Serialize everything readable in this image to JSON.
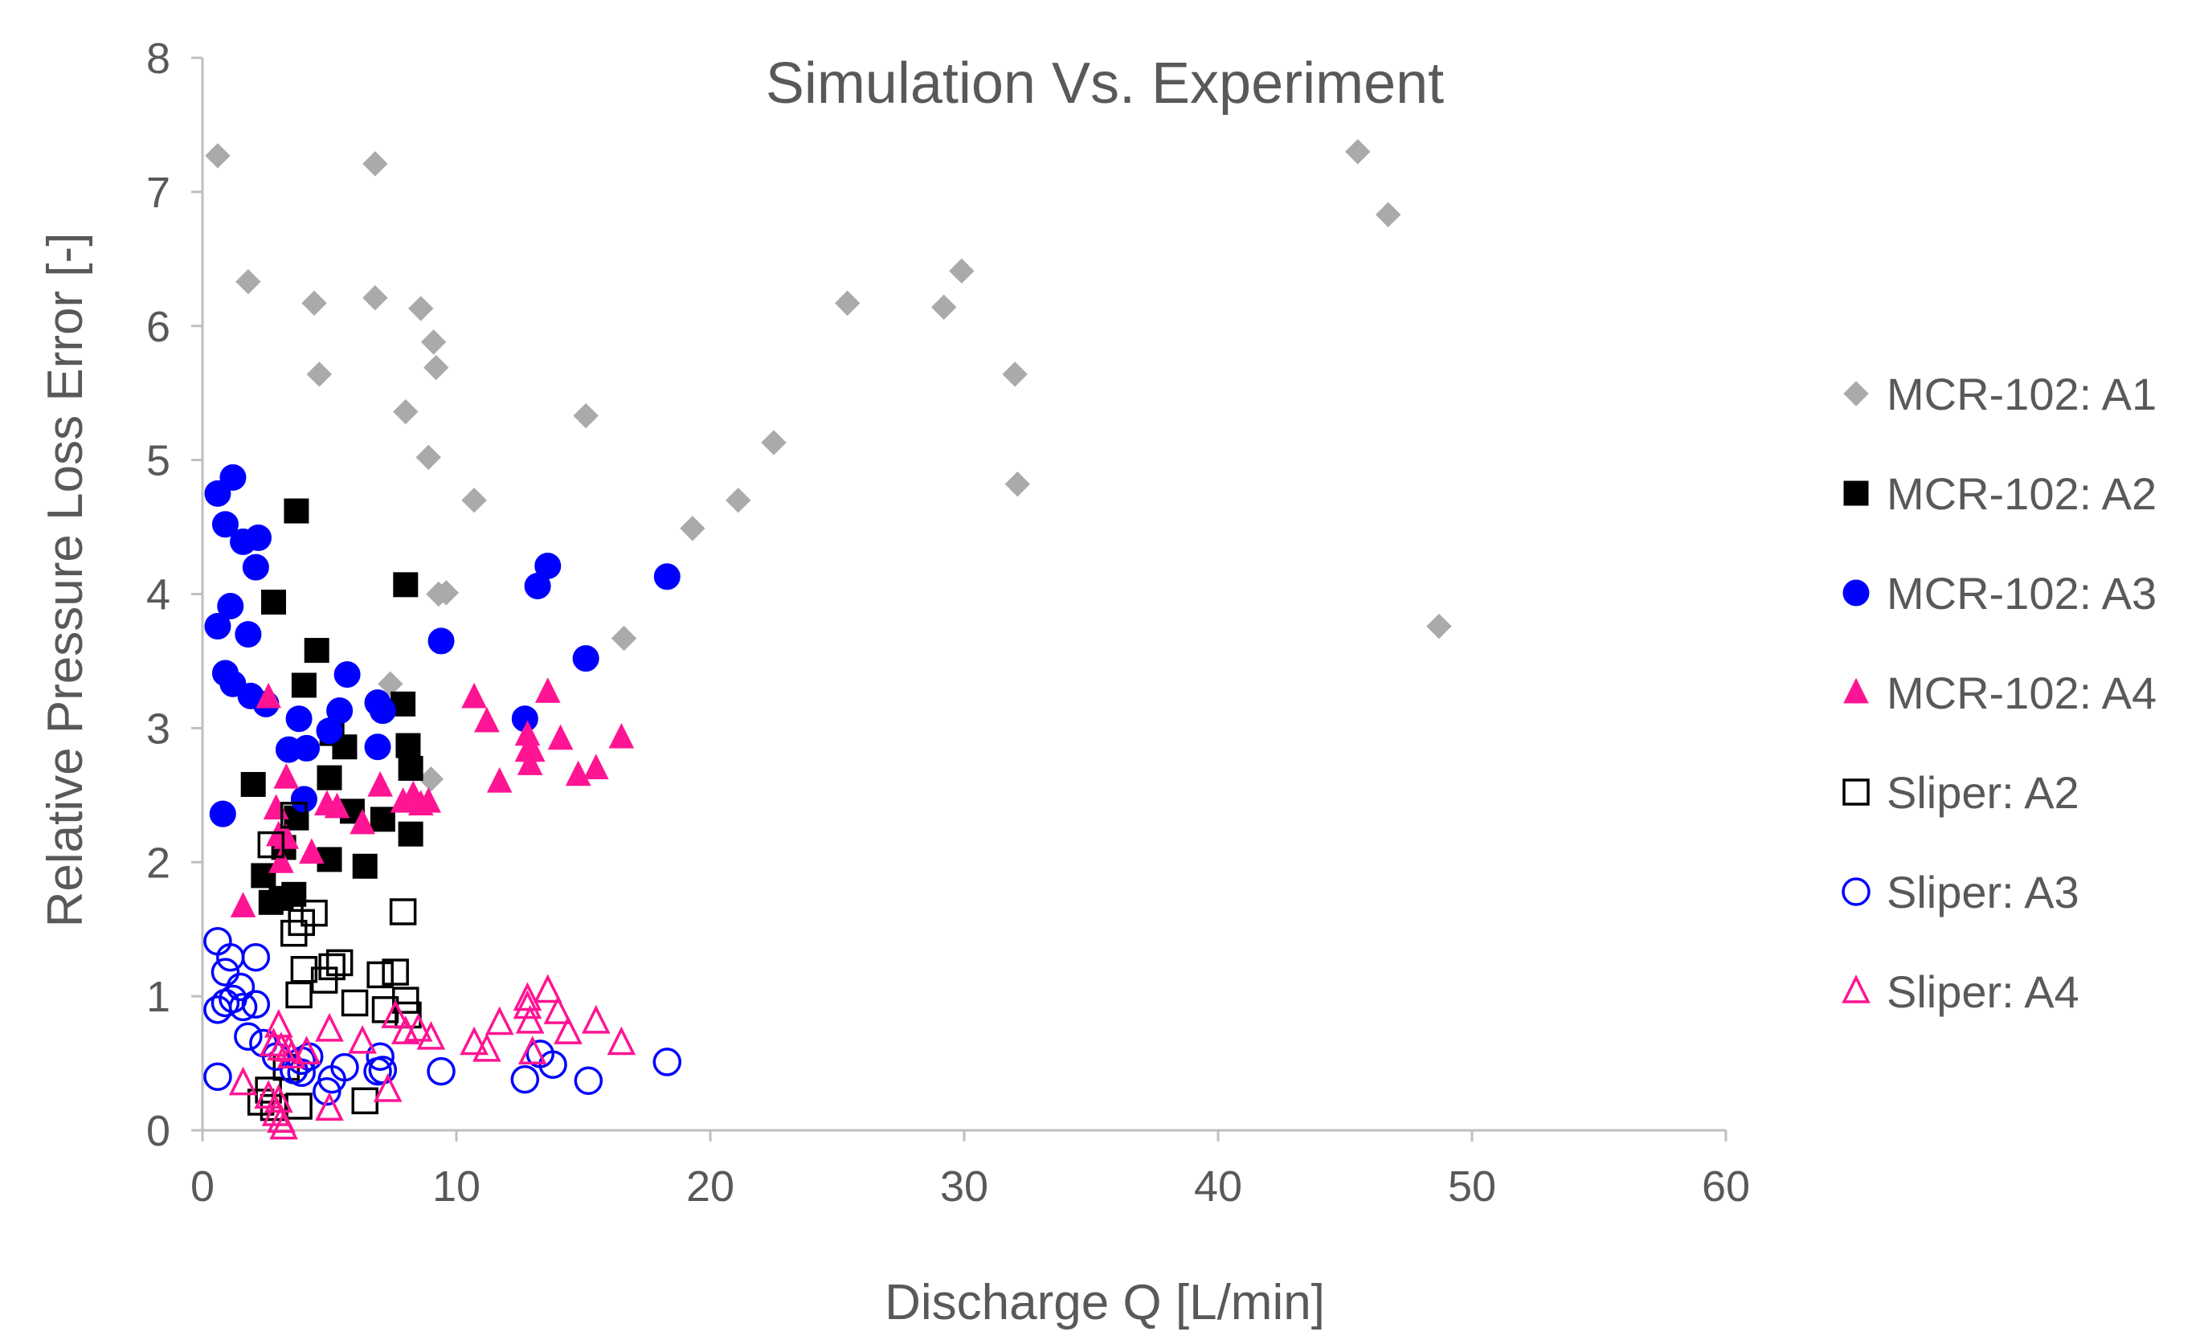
{
  "chart_data": {
    "type": "scatter",
    "title": "Simulation Vs. Experiment",
    "xlabel": "Discharge Q [L/min]",
    "ylabel": "Relative Pressure Loss Error [-]",
    "xlim": [
      0,
      60
    ],
    "ylim": [
      0,
      8
    ],
    "xticks": [
      "0",
      "10",
      "20",
      "30",
      "40",
      "50",
      "60"
    ],
    "yticks": [
      "0",
      "1",
      "2",
      "3",
      "4",
      "5",
      "6",
      "7",
      "8"
    ],
    "grid": false,
    "legend_position": "right",
    "series": [
      {
        "name": "MCR-102: A1",
        "marker": "diamond",
        "filled": true,
        "color": "#aaaaaa",
        "points": [
          [
            0.6,
            7.27
          ],
          [
            1.8,
            6.33
          ],
          [
            4.4,
            6.17
          ],
          [
            4.6,
            5.64
          ],
          [
            6.8,
            7.21
          ],
          [
            6.8,
            6.21
          ],
          [
            8.0,
            5.36
          ],
          [
            8.6,
            6.13
          ],
          [
            8.9,
            5.02
          ],
          [
            9.1,
            5.88
          ],
          [
            9.2,
            5.69
          ],
          [
            9.3,
            4.0
          ],
          [
            9.6,
            4.01
          ],
          [
            10.7,
            4.7
          ],
          [
            7.4,
            3.33
          ],
          [
            9.0,
            2.62
          ],
          [
            15.1,
            5.33
          ],
          [
            16.6,
            3.67
          ],
          [
            19.3,
            4.49
          ],
          [
            21.1,
            4.7
          ],
          [
            22.5,
            5.13
          ],
          [
            25.4,
            6.17
          ],
          [
            29.2,
            6.14
          ],
          [
            29.9,
            6.41
          ],
          [
            32.0,
            5.64
          ],
          [
            32.1,
            4.82
          ],
          [
            45.5,
            7.3
          ],
          [
            46.7,
            6.83
          ],
          [
            48.7,
            3.76
          ]
        ]
      },
      {
        "name": "MCR-102: A2",
        "marker": "square",
        "filled": true,
        "color": "#000000",
        "points": [
          [
            3.7,
            4.62
          ],
          [
            2.8,
            3.94
          ],
          [
            8.0,
            4.07
          ],
          [
            4.5,
            3.58
          ],
          [
            4.0,
            3.32
          ],
          [
            7.9,
            3.18
          ],
          [
            5.1,
            2.96
          ],
          [
            8.1,
            2.87
          ],
          [
            5.6,
            2.86
          ],
          [
            8.2,
            2.7
          ],
          [
            2.0,
            2.58
          ],
          [
            5.0,
            2.63
          ],
          [
            5.9,
            2.38
          ],
          [
            7.1,
            2.32
          ],
          [
            3.7,
            2.33
          ],
          [
            8.2,
            2.21
          ],
          [
            3.2,
            2.11
          ],
          [
            5.0,
            2.02
          ],
          [
            6.4,
            1.97
          ],
          [
            2.4,
            1.9
          ],
          [
            3.1,
            1.73
          ],
          [
            3.6,
            1.76
          ],
          [
            2.7,
            1.7
          ]
        ]
      },
      {
        "name": "MCR-102: A3",
        "marker": "circle",
        "filled": true,
        "color": "#0000ff",
        "points": [
          [
            1.2,
            4.87
          ],
          [
            0.6,
            4.75
          ],
          [
            0.9,
            4.52
          ],
          [
            1.6,
            4.39
          ],
          [
            2.2,
            4.42
          ],
          [
            2.1,
            4.2
          ],
          [
            1.1,
            3.91
          ],
          [
            0.6,
            3.76
          ],
          [
            1.8,
            3.7
          ],
          [
            0.9,
            3.41
          ],
          [
            1.2,
            3.33
          ],
          [
            1.9,
            3.24
          ],
          [
            2.5,
            3.18
          ],
          [
            13.6,
            4.21
          ],
          [
            13.2,
            4.06
          ],
          [
            18.3,
            4.13
          ],
          [
            9.4,
            3.65
          ],
          [
            15.1,
            3.52
          ],
          [
            5.7,
            3.4
          ],
          [
            12.7,
            3.07
          ],
          [
            6.9,
            3.19
          ],
          [
            7.1,
            3.13
          ],
          [
            5.4,
            3.13
          ],
          [
            3.8,
            3.07
          ],
          [
            5.0,
            2.98
          ],
          [
            3.4,
            2.84
          ],
          [
            4.1,
            2.85
          ],
          [
            6.9,
            2.86
          ],
          [
            4.0,
            2.47
          ],
          [
            0.8,
            2.36
          ]
        ]
      },
      {
        "name": "MCR-102: A4",
        "marker": "triangle",
        "filled": true,
        "color": "#ff1493",
        "points": [
          [
            2.6,
            3.23
          ],
          [
            3.3,
            2.63
          ],
          [
            2.9,
            2.4
          ],
          [
            3.0,
            2.2
          ],
          [
            3.3,
            2.18
          ],
          [
            3.1,
            2.0
          ],
          [
            4.3,
            2.07
          ],
          [
            4.9,
            2.43
          ],
          [
            5.3,
            2.41
          ],
          [
            6.3,
            2.29
          ],
          [
            7.0,
            2.57
          ],
          [
            7.9,
            2.45
          ],
          [
            8.3,
            2.5
          ],
          [
            8.6,
            2.43
          ],
          [
            8.9,
            2.45
          ],
          [
            1.6,
            1.67
          ],
          [
            10.7,
            3.23
          ],
          [
            11.2,
            3.05
          ],
          [
            11.7,
            2.6
          ],
          [
            12.8,
            2.95
          ],
          [
            12.8,
            2.83
          ],
          [
            12.9,
            2.73
          ],
          [
            13.0,
            2.83
          ],
          [
            13.6,
            3.27
          ],
          [
            14.1,
            2.92
          ],
          [
            14.8,
            2.65
          ],
          [
            15.5,
            2.7
          ],
          [
            16.5,
            2.93
          ]
        ]
      },
      {
        "name": "Sliper: A2",
        "marker": "square",
        "filled": false,
        "color": "#000000",
        "points": [
          [
            2.7,
            2.13
          ],
          [
            3.6,
            2.35
          ],
          [
            3.6,
            1.47
          ],
          [
            3.9,
            1.55
          ],
          [
            4.4,
            1.62
          ],
          [
            4.0,
            1.2
          ],
          [
            5.1,
            1.22
          ],
          [
            5.4,
            1.25
          ],
          [
            4.8,
            1.12
          ],
          [
            7.0,
            1.16
          ],
          [
            7.6,
            1.18
          ],
          [
            3.8,
            1.01
          ],
          [
            6.0,
            0.95
          ],
          [
            7.2,
            0.9
          ],
          [
            8.0,
            0.97
          ],
          [
            8.1,
            0.86
          ],
          [
            7.9,
            1.63
          ],
          [
            2.6,
            0.3
          ],
          [
            3.3,
            0.47
          ],
          [
            2.3,
            0.21
          ],
          [
            3.8,
            0.18
          ],
          [
            6.4,
            0.22
          ],
          [
            2.8,
            0.17
          ]
        ]
      },
      {
        "name": "Sliper: A3",
        "marker": "circle",
        "filled": false,
        "color": "#0000ff",
        "points": [
          [
            0.6,
            1.41
          ],
          [
            1.1,
            1.29
          ],
          [
            0.9,
            1.18
          ],
          [
            2.1,
            1.29
          ],
          [
            1.5,
            1.07
          ],
          [
            0.6,
            0.9
          ],
          [
            1.2,
            0.98
          ],
          [
            1.6,
            0.92
          ],
          [
            2.1,
            0.94
          ],
          [
            0.9,
            0.95
          ],
          [
            1.8,
            0.7
          ],
          [
            2.4,
            0.65
          ],
          [
            2.9,
            0.55
          ],
          [
            3.9,
            0.52
          ],
          [
            4.2,
            0.55
          ],
          [
            3.6,
            0.45
          ],
          [
            3.9,
            0.43
          ],
          [
            5.1,
            0.38
          ],
          [
            5.6,
            0.47
          ],
          [
            7.0,
            0.55
          ],
          [
            7.1,
            0.45
          ],
          [
            0.6,
            0.4
          ],
          [
            4.9,
            0.29
          ],
          [
            9.4,
            0.44
          ],
          [
            12.7,
            0.38
          ],
          [
            13.3,
            0.57
          ],
          [
            13.8,
            0.49
          ],
          [
            15.2,
            0.37
          ],
          [
            18.3,
            0.51
          ],
          [
            6.9,
            0.44
          ]
        ]
      },
      {
        "name": "Sliper: A4",
        "marker": "triangle",
        "filled": false,
        "color": "#ff1493",
        "points": [
          [
            3.0,
            0.78
          ],
          [
            2.8,
            0.64
          ],
          [
            3.1,
            0.61
          ],
          [
            3.4,
            0.6
          ],
          [
            3.5,
            0.55
          ],
          [
            4.1,
            0.58
          ],
          [
            5.0,
            0.75
          ],
          [
            6.3,
            0.66
          ],
          [
            7.6,
            0.85
          ],
          [
            8.0,
            0.73
          ],
          [
            8.5,
            0.75
          ],
          [
            9.0,
            0.69
          ],
          [
            1.6,
            0.35
          ],
          [
            2.6,
            0.25
          ],
          [
            3.0,
            0.22
          ],
          [
            2.9,
            0.12
          ],
          [
            3.1,
            0.07
          ],
          [
            3.2,
            0.02
          ],
          [
            5.0,
            0.16
          ],
          [
            7.3,
            0.3
          ],
          [
            10.7,
            0.65
          ],
          [
            11.2,
            0.6
          ],
          [
            11.7,
            0.8
          ],
          [
            12.8,
            0.98
          ],
          [
            12.8,
            0.92
          ],
          [
            12.9,
            0.81
          ],
          [
            13.0,
            0.58
          ],
          [
            13.6,
            1.04
          ],
          [
            14.0,
            0.88
          ],
          [
            14.4,
            0.73
          ],
          [
            15.5,
            0.81
          ],
          [
            16.5,
            0.65
          ]
        ]
      }
    ]
  }
}
